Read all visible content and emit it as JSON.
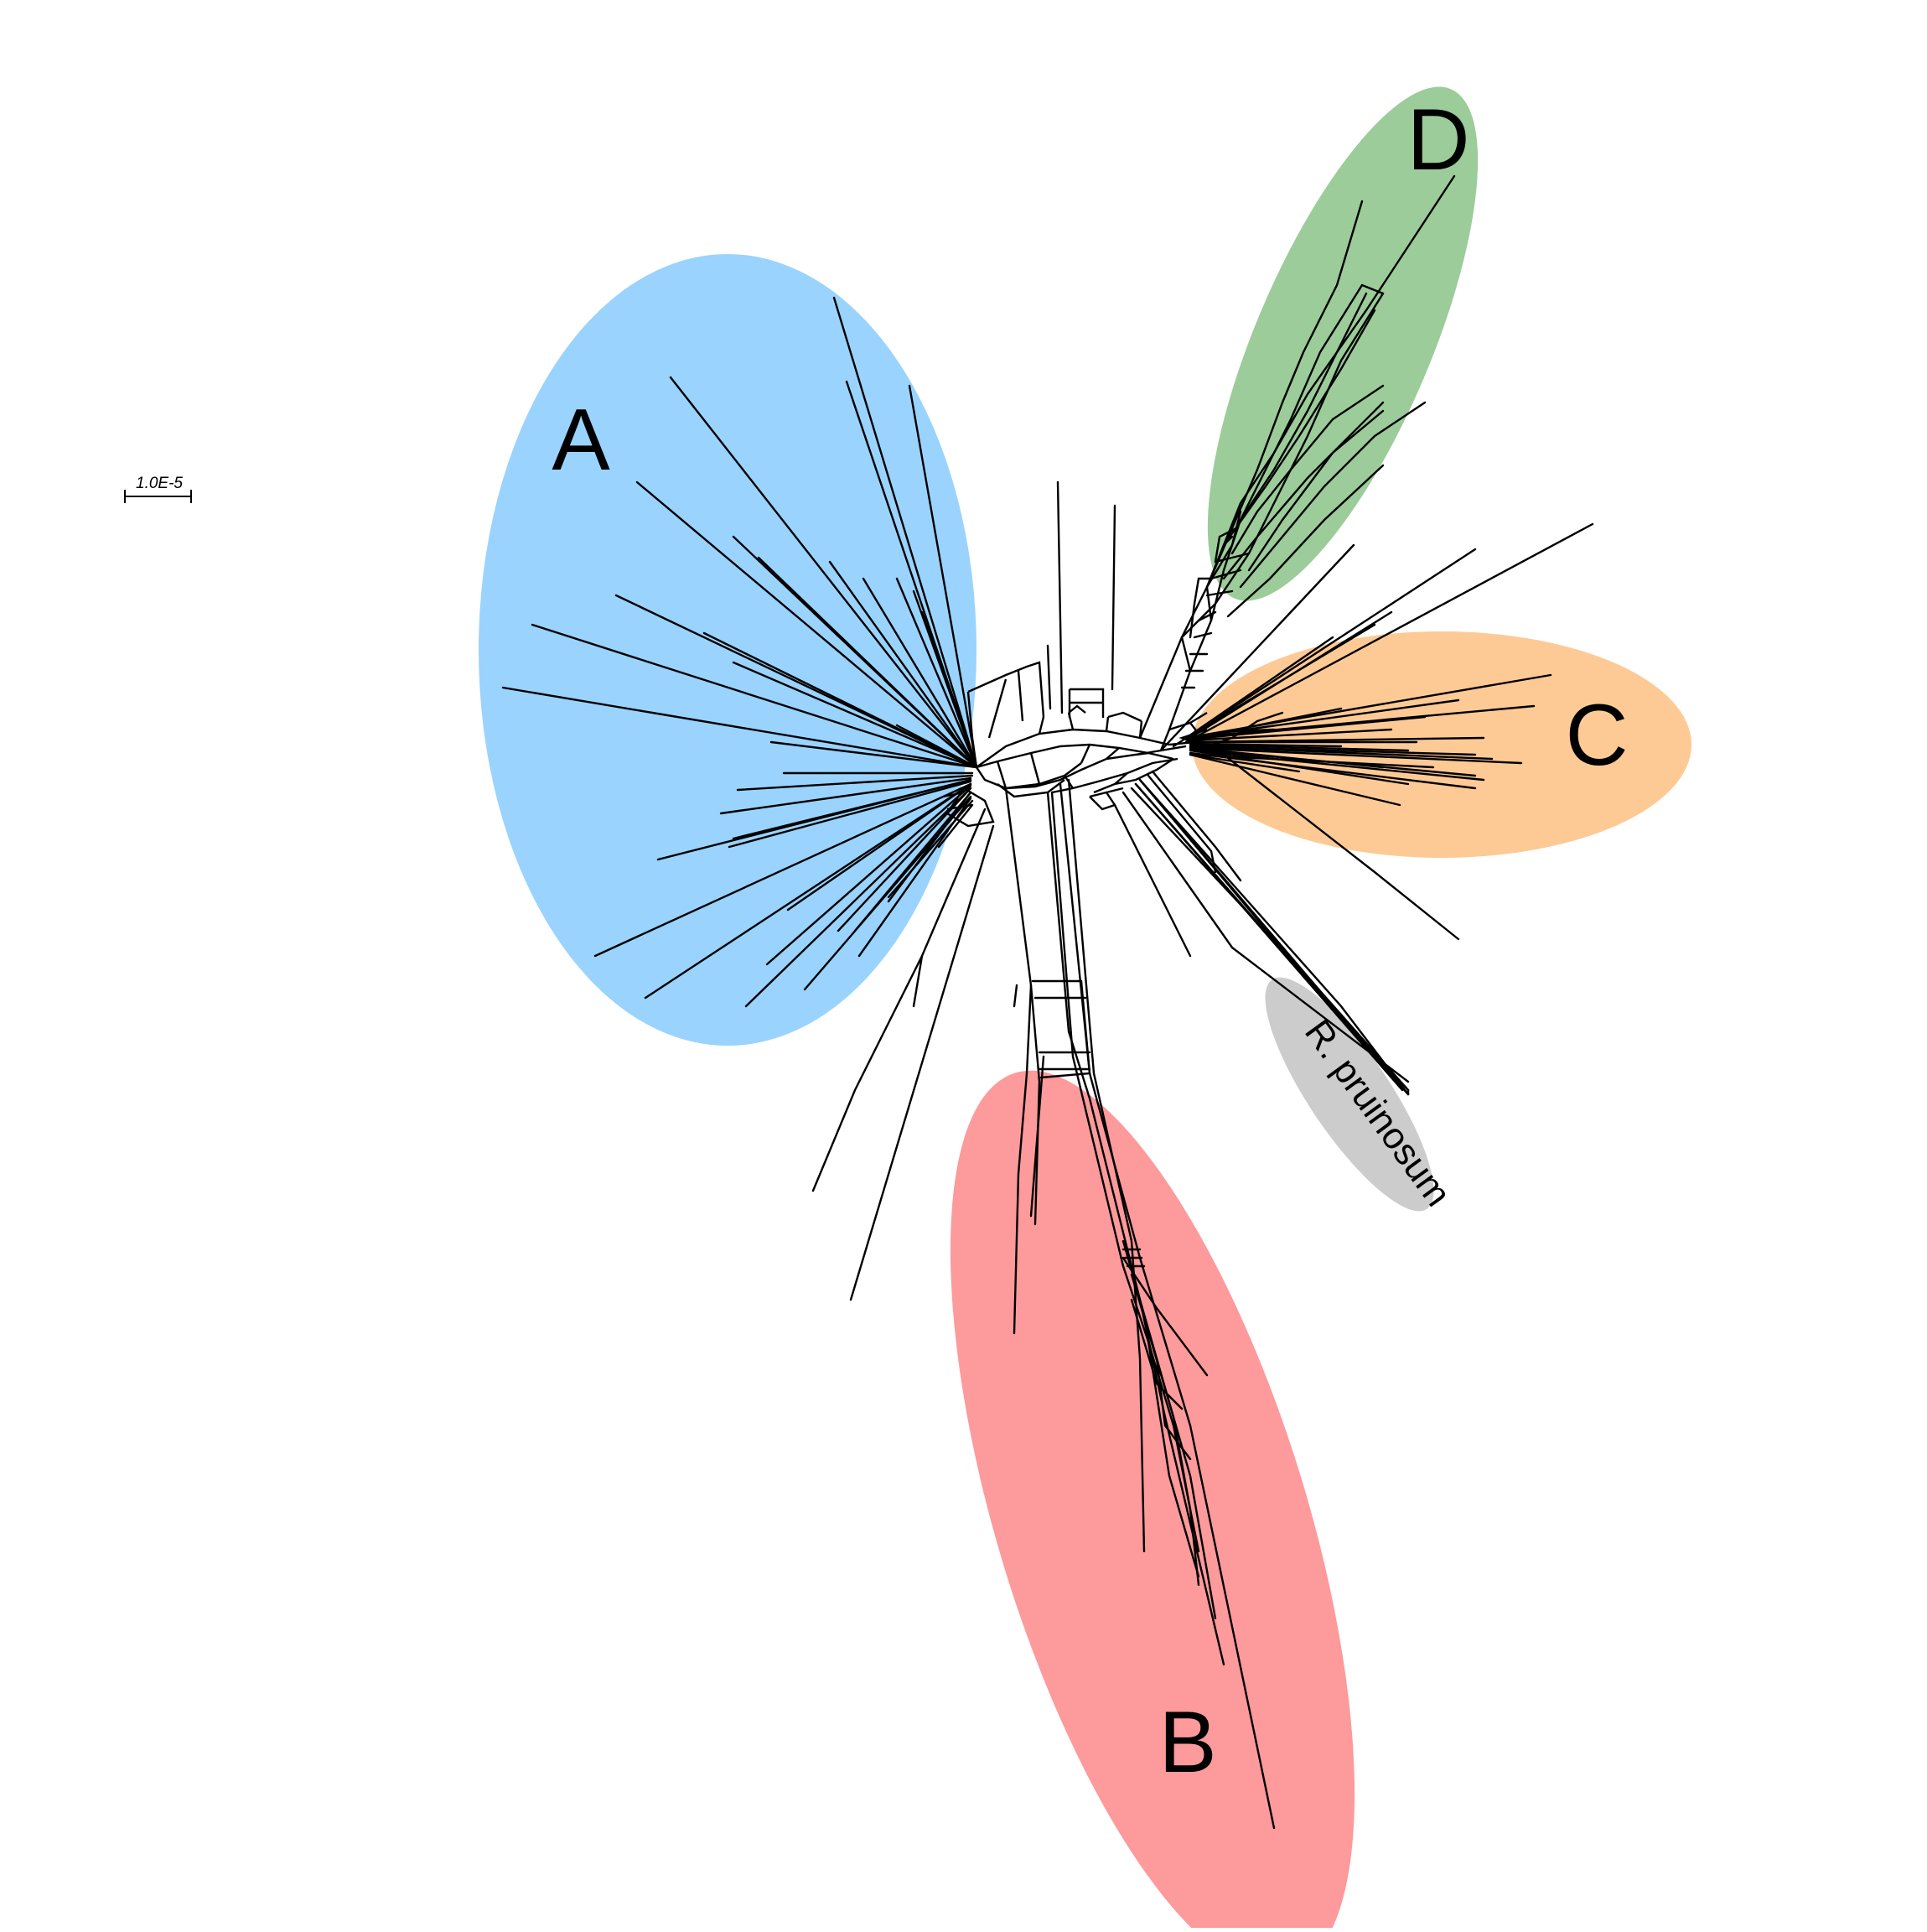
{
  "scale_bar": {
    "label": "1.0E-5"
  },
  "clusters": [
    {
      "key": "A",
      "label": "A",
      "color": "#9ad3fd"
    },
    {
      "key": "B",
      "label": "B",
      "color": "#fd9a9b"
    },
    {
      "key": "C",
      "label": "C",
      "color": "#fdca96"
    },
    {
      "key": "D",
      "label": "D",
      "color": "#9ccc99"
    },
    {
      "key": "R",
      "label": "R. pruinosum",
      "color": "#cccccc"
    }
  ],
  "line_color": "#000000"
}
